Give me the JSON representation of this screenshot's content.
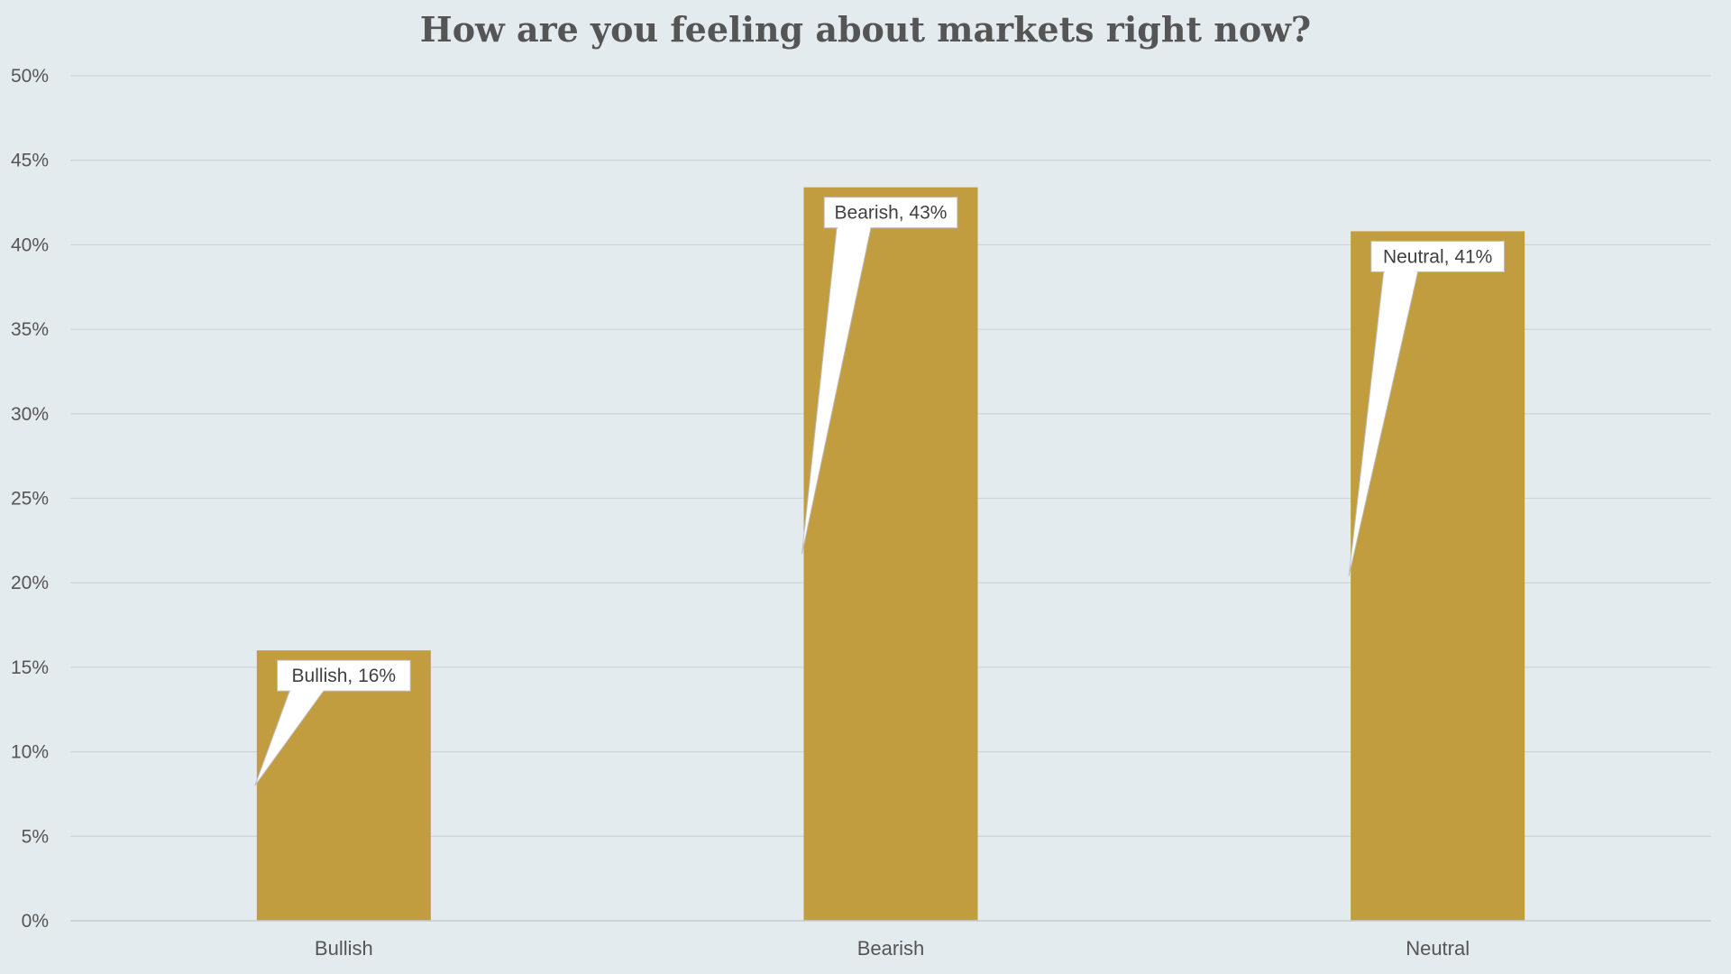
{
  "chart_data": {
    "type": "bar",
    "title": "How are you feeling about markets right now?",
    "categories": [
      "Bullish",
      "Bearish",
      "Neutral"
    ],
    "values": [
      16,
      43.4,
      40.8
    ],
    "data_labels": [
      "Bullish, 16%",
      "Bearish, 43%",
      "Neutral, 41%"
    ],
    "ylim": [
      0,
      50
    ],
    "yticks": [
      0,
      5,
      10,
      15,
      20,
      25,
      30,
      35,
      40,
      45,
      50
    ],
    "ytick_labels": [
      "0%",
      "5%",
      "10%",
      "15%",
      "20%",
      "25%",
      "30%",
      "35%",
      "40%",
      "45%",
      "50%"
    ],
    "xlabel": "",
    "ylabel": "",
    "grid": true,
    "legend": "none",
    "bar_color": "#c19d3f",
    "background_color": "#e4ebef",
    "grid_color": "#cfd4d8"
  }
}
